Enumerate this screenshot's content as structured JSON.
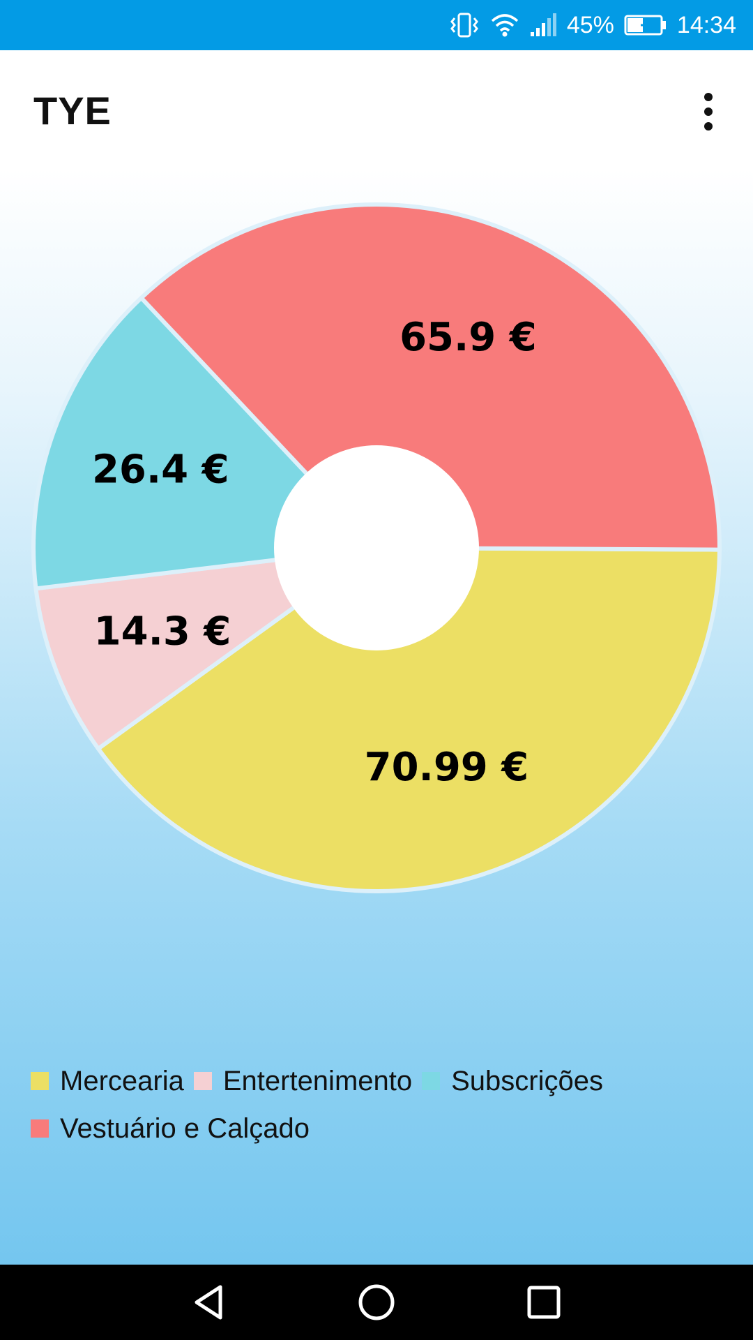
{
  "status_bar": {
    "battery": "45%",
    "time": "14:34",
    "icons": [
      "vibrate-icon",
      "wifi-icon",
      "signal-icon",
      "battery-charging-icon"
    ]
  },
  "app_bar": {
    "title": "TYE",
    "menu_icon": "more-vert-icon"
  },
  "colors": {
    "status_bar": "#039BE5",
    "Mercearia": "#ECDF64",
    "Entertenimento": "#F5D0D3",
    "Subscrições": "#7DD8E4",
    "Vestuário e Calçado": "#F87B7B"
  },
  "chart_data": {
    "type": "pie",
    "donut": true,
    "start_angle_deg": 90.3,
    "slices": [
      {
        "name": "Mercearia",
        "value": 70.99,
        "label": "70.99 €",
        "color": "#ECDF64"
      },
      {
        "name": "Entertenimento",
        "value": 14.3,
        "label": "14.3 €",
        "color": "#F5D0D3"
      },
      {
        "name": "Subscrições",
        "value": 26.4,
        "label": "26.4 €",
        "color": "#7DD8E4"
      },
      {
        "name": "Vestuário e Calçado",
        "value": 65.9,
        "label": "65.9 €",
        "color": "#F87B7B"
      }
    ],
    "legend": [
      "Mercearia",
      "Entertenimento",
      "Subscrições",
      "Vestuário e Calçado"
    ],
    "legend_position": "bottom-left"
  },
  "nav_bar": {
    "icons": [
      "back-icon",
      "home-icon",
      "recents-icon"
    ]
  }
}
